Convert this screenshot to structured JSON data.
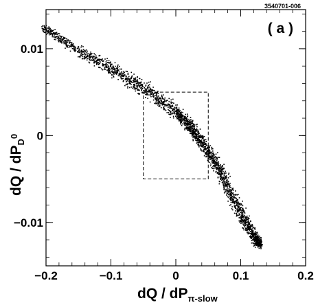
{
  "figure_id": "3540701-006",
  "chart_data": {
    "type": "scatter",
    "panel_label": "( a )",
    "xlabel": "dQ / dP",
    "xlabel_sub": "π-slow",
    "ylabel": "dQ / dP",
    "ylabel_sub": "D",
    "ylabel_sup": "0",
    "xlim": [
      -0.2,
      0.2
    ],
    "ylim": [
      -0.015,
      0.0145
    ],
    "x_ticks": [
      -0.2,
      -0.1,
      0,
      0.1,
      0.2
    ],
    "x_tick_labels": [
      "−0.2",
      "−0.1",
      "0",
      "0.1",
      "0.2"
    ],
    "y_ticks": [
      0.01,
      0,
      -0.01
    ],
    "y_tick_labels": [
      "0.01",
      "0",
      "−0.01"
    ],
    "grid": false,
    "band": {
      "description_points": [
        [
          -0.205,
          0.0125
        ],
        [
          -0.15,
          0.0098
        ],
        [
          -0.1,
          0.0077
        ],
        [
          -0.05,
          0.0055
        ],
        [
          0.0,
          0.0028
        ],
        [
          0.02,
          0.0012
        ],
        [
          0.04,
          -0.0008
        ],
        [
          0.06,
          -0.003
        ],
        [
          0.08,
          -0.006
        ],
        [
          0.1,
          -0.009
        ],
        [
          0.12,
          -0.0115
        ],
        [
          0.13,
          -0.0125
        ]
      ],
      "half_width": [
        0.0006,
        0.001,
        0.0012,
        0.0013,
        0.0013,
        0.0013,
        0.0014,
        0.0016,
        0.0018,
        0.0018,
        0.0015,
        0.0008
      ]
    },
    "cut_box": {
      "x": [
        -0.05,
        0.05
      ],
      "y": [
        -0.005,
        0.005
      ]
    }
  }
}
